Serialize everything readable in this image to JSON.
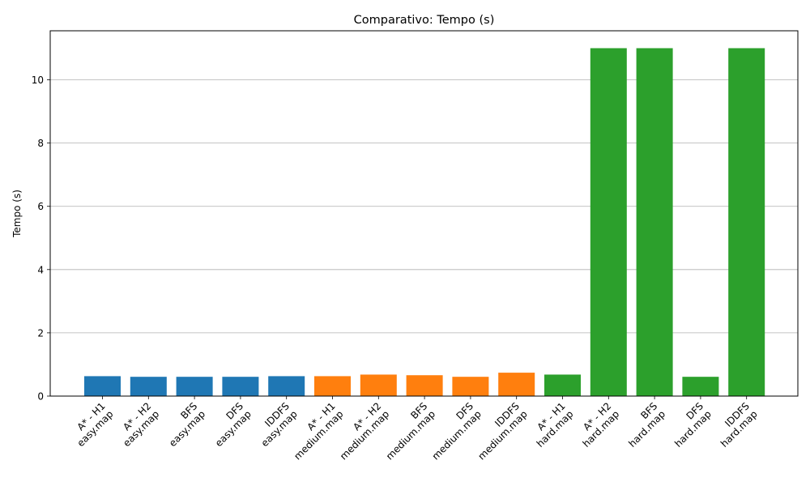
{
  "chart_data": {
    "type": "bar",
    "title": "Comparativo: Tempo (s)",
    "xlabel": "",
    "ylabel": "Tempo (s)",
    "ylim": [
      0,
      11.55
    ],
    "yticks": [
      0,
      2,
      4,
      6,
      8,
      10
    ],
    "grid": "y",
    "categories": [
      [
        "A* - H1",
        "easy.map"
      ],
      [
        "A* - H2",
        "easy.map"
      ],
      [
        "BFS",
        "easy.map"
      ],
      [
        "DFS",
        "easy.map"
      ],
      [
        "IDDFS",
        "easy.map"
      ],
      [
        "A* - H1",
        "medium.map"
      ],
      [
        "A* - H2",
        "medium.map"
      ],
      [
        "BFS",
        "medium.map"
      ],
      [
        "DFS",
        "medium.map"
      ],
      [
        "IDDFS",
        "medium.map"
      ],
      [
        "A* - H1",
        "hard.map"
      ],
      [
        "A* - H2",
        "hard.map"
      ],
      [
        "BFS",
        "hard.map"
      ],
      [
        "DFS",
        "hard.map"
      ],
      [
        "IDDFS",
        "hard.map"
      ]
    ],
    "values": [
      0.63,
      0.61,
      0.61,
      0.61,
      0.63,
      0.63,
      0.68,
      0.66,
      0.61,
      0.74,
      0.68,
      11.0,
      11.0,
      0.61,
      11.0
    ],
    "colors": [
      "#1f77b4",
      "#1f77b4",
      "#1f77b4",
      "#1f77b4",
      "#1f77b4",
      "#ff7f0e",
      "#ff7f0e",
      "#ff7f0e",
      "#ff7f0e",
      "#ff7f0e",
      "#2ca02c",
      "#2ca02c",
      "#2ca02c",
      "#2ca02c",
      "#2ca02c"
    ]
  }
}
